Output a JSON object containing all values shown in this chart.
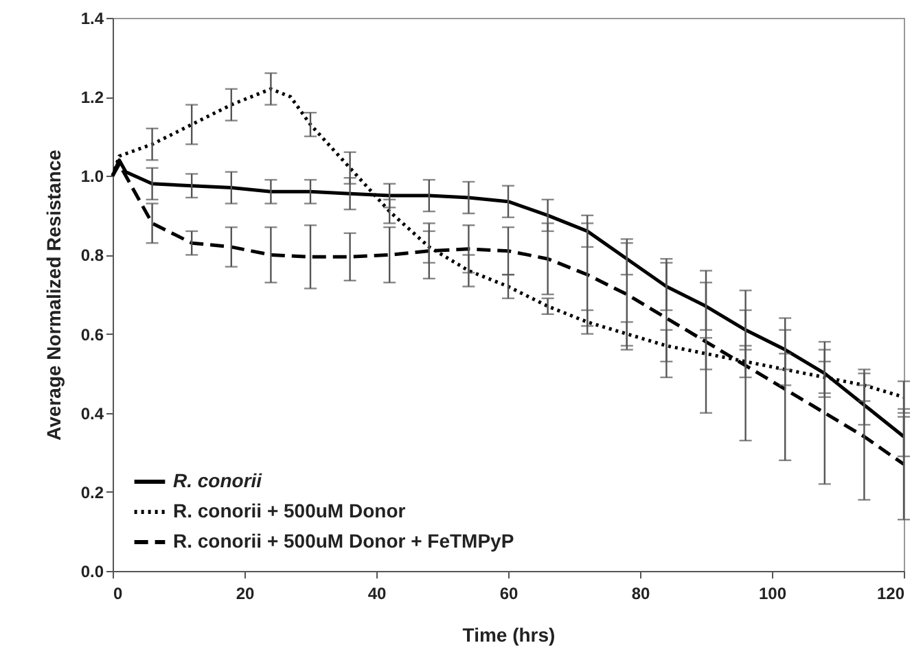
{
  "chart_data": {
    "type": "line",
    "xlabel": "Time (hrs)",
    "ylabel": "Average Normalized Resistance",
    "xlim": [
      0,
      120
    ],
    "xticks": [
      0,
      20,
      40,
      60,
      80,
      100,
      120
    ],
    "ylim": [
      0,
      1.4
    ],
    "yticks": [
      {
        "value": 0,
        "label": "0.0"
      },
      {
        "value": 0.2,
        "label": "0.2"
      },
      {
        "value": 0.4,
        "label": "0.4"
      },
      {
        "value": 0.6,
        "label": "0.6"
      },
      {
        "value": 0.8,
        "label": "0.8"
      },
      {
        "value": 1,
        "label": "1.0"
      },
      {
        "value": 1.2,
        "label": "1.2"
      },
      {
        "value": 1.4,
        "label": "1.4"
      }
    ],
    "grid": false,
    "legend": "bottom left",
    "series": [
      {
        "name": "R. conorii",
        "color": "#000000",
        "line_style": "solid",
        "x": [
          0,
          1,
          2,
          6,
          12,
          18,
          24,
          30,
          36,
          42,
          48,
          54,
          60,
          66,
          72,
          78,
          84,
          90,
          96,
          102,
          108,
          114,
          120
        ],
        "values": [
          1.0,
          1.04,
          1.01,
          0.98,
          0.975,
          0.97,
          0.96,
          0.96,
          0.955,
          0.95,
          0.95,
          0.945,
          0.935,
          0.9,
          0.86,
          0.79,
          0.72,
          0.67,
          0.61,
          0.56,
          0.5,
          0.42,
          0.34
        ],
        "errors": [
          null,
          null,
          null,
          0.04,
          0.03,
          0.04,
          0.03,
          0.03,
          0.04,
          0.03,
          0.04,
          0.04,
          0.04,
          0.04,
          0.04,
          0.04,
          0.06,
          0.06,
          0.05,
          0.05,
          0.06,
          0.05,
          0.05
        ]
      },
      {
        "name": "R. conorii + 500uM Donor",
        "color": "#000000",
        "line_style": "dotted",
        "x": [
          0,
          1,
          6,
          12,
          18,
          24,
          27,
          30,
          36,
          42,
          48,
          54,
          60,
          66,
          72,
          78,
          84,
          90,
          96,
          102,
          108,
          114,
          120
        ],
        "values": [
          1.0,
          1.05,
          1.08,
          1.13,
          1.18,
          1.22,
          1.2,
          1.13,
          1.02,
          0.91,
          0.82,
          0.76,
          0.72,
          0.67,
          0.63,
          0.6,
          0.57,
          0.55,
          0.53,
          0.51,
          0.49,
          0.47,
          0.44
        ],
        "errors": [
          null,
          null,
          0.04,
          0.05,
          0.04,
          0.04,
          null,
          0.03,
          0.04,
          0.03,
          0.04,
          0.04,
          0.03,
          0.02,
          0.03,
          0.03,
          0.04,
          0.04,
          0.04,
          0.04,
          0.04,
          0.04,
          0.04
        ]
      },
      {
        "name": "R. conorii + 500uM Donor + FeTMPyP",
        "color": "#000000",
        "line_style": "dashed",
        "x": [
          0,
          1,
          6,
          12,
          18,
          24,
          30,
          36,
          42,
          48,
          54,
          60,
          66,
          72,
          78,
          84,
          90,
          96,
          102,
          108,
          114,
          120
        ],
        "values": [
          1.0,
          1.03,
          0.88,
          0.83,
          0.82,
          0.8,
          0.795,
          0.795,
          0.8,
          0.81,
          0.815,
          0.81,
          0.79,
          0.75,
          0.7,
          0.64,
          0.58,
          0.52,
          0.46,
          0.4,
          0.34,
          0.27
        ],
        "errors": [
          null,
          null,
          0.05,
          0.03,
          0.05,
          0.07,
          0.08,
          0.06,
          0.07,
          0.07,
          0.06,
          0.06,
          0.09,
          0.13,
          0.14,
          0.15,
          0.18,
          0.19,
          0.18,
          0.18,
          0.16,
          0.14
        ]
      }
    ]
  }
}
